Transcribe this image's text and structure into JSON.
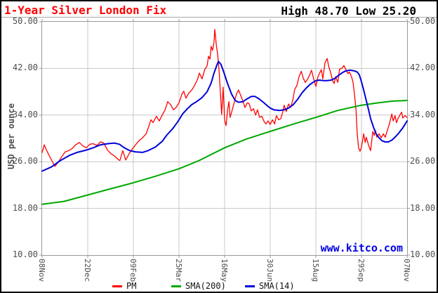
{
  "header": {
    "title": "1-Year Silver London Fix",
    "high_low": "High 48.70 Low 25.20"
  },
  "watermark": "www.kitco.com",
  "legend": {
    "items": [
      {
        "label": "PM",
        "color": "#ff0000"
      },
      {
        "label": "SMA(200)",
        "color": "#00a800"
      },
      {
        "label": "SMA(14)",
        "color": "#0000dd"
      }
    ]
  },
  "chart_data": {
    "type": "line",
    "title": "1-Year Silver London Fix",
    "xlabel": "",
    "ylabel": "USD per ounce",
    "ylim": [
      10,
      50
    ],
    "y_ticks": [
      10,
      18,
      26,
      34,
      42,
      50
    ],
    "y_tick_format_decimals": 2,
    "x_tick_labels": [
      "08Nov",
      "22Dec",
      "09Feb",
      "25Mar",
      "16May",
      "30Jun",
      "15Aug",
      "29Sep",
      "07Nov"
    ],
    "grid": true,
    "legend_position": "bottom",
    "high": 48.7,
    "low": 25.2,
    "colors": {
      "grid": "#c8c8c8",
      "frame": "#999999",
      "tick": "#999999",
      "labels": "#4d4d4d"
    },
    "series": [
      {
        "name": "PM",
        "color": "#ff0000",
        "width": 1.3,
        "points": [
          [
            0,
            27.6
          ],
          [
            0.6,
            28.9
          ],
          [
            1.2,
            28
          ],
          [
            1.9,
            27.1
          ],
          [
            2.9,
            25.9
          ],
          [
            3.5,
            25.2
          ],
          [
            4.4,
            25.9
          ],
          [
            5.4,
            26.9
          ],
          [
            6.3,
            27.7
          ],
          [
            7.3,
            27.9
          ],
          [
            8.3,
            28.3
          ],
          [
            9.2,
            28.9
          ],
          [
            10.2,
            29.3
          ],
          [
            11.2,
            28.7
          ],
          [
            12.1,
            28.4
          ],
          [
            13.1,
            29
          ],
          [
            14,
            29.1
          ],
          [
            15,
            28.8
          ],
          [
            16,
            29.4
          ],
          [
            16.9,
            29.2
          ],
          [
            17.9,
            28
          ],
          [
            18.8,
            27.4
          ],
          [
            19.8,
            27
          ],
          [
            20.8,
            26.4
          ],
          [
            21.3,
            26.2
          ],
          [
            22.1,
            27.9
          ],
          [
            22.9,
            26.3
          ],
          [
            23.7,
            27.2
          ],
          [
            24.6,
            28.1
          ],
          [
            25.6,
            28.9
          ],
          [
            26.5,
            29.6
          ],
          [
            27.5,
            30.1
          ],
          [
            28.5,
            30.8
          ],
          [
            29.2,
            32
          ],
          [
            29.8,
            33.2
          ],
          [
            30.4,
            32.7
          ],
          [
            31.3,
            33.8
          ],
          [
            32.1,
            33
          ],
          [
            32.9,
            34
          ],
          [
            33.7,
            34.9
          ],
          [
            34.4,
            36.3
          ],
          [
            35.2,
            35.8
          ],
          [
            36,
            34.9
          ],
          [
            36.7,
            35.3
          ],
          [
            37.5,
            36.1
          ],
          [
            38.3,
            37.6
          ],
          [
            38.8,
            38.1
          ],
          [
            39.4,
            36.9
          ],
          [
            40.2,
            37.8
          ],
          [
            41,
            38.3
          ],
          [
            41.7,
            39
          ],
          [
            42.5,
            40
          ],
          [
            43.1,
            41.2
          ],
          [
            43.8,
            40.2
          ],
          [
            44.6,
            41.9
          ],
          [
            45.2,
            42.4
          ],
          [
            45.6,
            44.1
          ],
          [
            46,
            43.6
          ],
          [
            46.3,
            45.8
          ],
          [
            46.7,
            45.1
          ],
          [
            47.1,
            46.5
          ],
          [
            47.3,
            48.7
          ],
          [
            47.7,
            46.2
          ],
          [
            48.1,
            44.4
          ],
          [
            48.5,
            41.5
          ],
          [
            48.8,
            38.2
          ],
          [
            49.2,
            34.1
          ],
          [
            49.6,
            38.8
          ],
          [
            50,
            33.1
          ],
          [
            50.4,
            32.2
          ],
          [
            50.8,
            34.9
          ],
          [
            51.2,
            36.3
          ],
          [
            51.5,
            33.6
          ],
          [
            52.1,
            34.9
          ],
          [
            52.7,
            36.3
          ],
          [
            53.3,
            37.7
          ],
          [
            53.8,
            38.3
          ],
          [
            54.4,
            37.4
          ],
          [
            55,
            36.4
          ],
          [
            55.6,
            35.3
          ],
          [
            56.2,
            36.1
          ],
          [
            56.7,
            36
          ],
          [
            57.3,
            34.7
          ],
          [
            57.9,
            35.1
          ],
          [
            58.5,
            34
          ],
          [
            59,
            34.9
          ],
          [
            59.6,
            33.6
          ],
          [
            60.2,
            33.8
          ],
          [
            60.8,
            32.9
          ],
          [
            61.3,
            32.5
          ],
          [
            61.9,
            33
          ],
          [
            62.5,
            32.4
          ],
          [
            63.1,
            33.2
          ],
          [
            63.7,
            32.5
          ],
          [
            64.2,
            33.9
          ],
          [
            64.8,
            33.2
          ],
          [
            65.4,
            33.4
          ],
          [
            66,
            34.7
          ],
          [
            66.3,
            35.7
          ],
          [
            66.9,
            34.6
          ],
          [
            67.5,
            35.9
          ],
          [
            68.1,
            35.3
          ],
          [
            68.7,
            36.6
          ],
          [
            69.2,
            38.4
          ],
          [
            69.8,
            39.1
          ],
          [
            70.4,
            40.6
          ],
          [
            71,
            41.5
          ],
          [
            71.5,
            40.4
          ],
          [
            72.1,
            39.6
          ],
          [
            72.7,
            40.1
          ],
          [
            73.3,
            40.9
          ],
          [
            73.8,
            41.7
          ],
          [
            74.4,
            40.2
          ],
          [
            75,
            38.9
          ],
          [
            75.6,
            40.6
          ],
          [
            76.2,
            41.4
          ],
          [
            76.5,
            41.8
          ],
          [
            76.9,
            40.2
          ],
          [
            77.5,
            43
          ],
          [
            78.1,
            43.7
          ],
          [
            78.5,
            42.4
          ],
          [
            79,
            41.4
          ],
          [
            79.6,
            39.9
          ],
          [
            80,
            39.4
          ],
          [
            80.4,
            40.6
          ],
          [
            81,
            39.6
          ],
          [
            81.5,
            41.9
          ],
          [
            82.1,
            42
          ],
          [
            82.7,
            42.5
          ],
          [
            83.3,
            41.7
          ],
          [
            83.8,
            41.1
          ],
          [
            84.2,
            41.4
          ],
          [
            84.8,
            40.5
          ],
          [
            85.2,
            39.6
          ],
          [
            85.6,
            37.4
          ],
          [
            86,
            34.9
          ],
          [
            86.3,
            31
          ],
          [
            86.7,
            28.4
          ],
          [
            87.1,
            27.8
          ],
          [
            87.5,
            28.5
          ],
          [
            88.1,
            30.8
          ],
          [
            88.5,
            29.3
          ],
          [
            88.8,
            30.2
          ],
          [
            89.4,
            28.9
          ],
          [
            90,
            27.9
          ],
          [
            90.6,
            31.2
          ],
          [
            91,
            30.5
          ],
          [
            91.3,
            31.4
          ],
          [
            91.7,
            30.2
          ],
          [
            92.3,
            30.8
          ],
          [
            92.9,
            30.1
          ],
          [
            93.5,
            30.8
          ],
          [
            94,
            30.2
          ],
          [
            94.6,
            31.4
          ],
          [
            95.2,
            32.6
          ],
          [
            95.8,
            34.2
          ],
          [
            96.2,
            33
          ],
          [
            96.7,
            33.9
          ],
          [
            97.1,
            32.7
          ],
          [
            97.5,
            33.4
          ],
          [
            98.1,
            34.1
          ],
          [
            98.5,
            34.5
          ],
          [
            98.8,
            33.5
          ],
          [
            99.4,
            33.9
          ],
          [
            100,
            33.6
          ]
        ]
      },
      {
        "name": "SMA(200)",
        "color": "#00a800",
        "width": 2,
        "points": [
          [
            0,
            18.7
          ],
          [
            6,
            19.2
          ],
          [
            12.5,
            20.3
          ],
          [
            19,
            21.4
          ],
          [
            25,
            22.4
          ],
          [
            31,
            23.5
          ],
          [
            37.5,
            24.8
          ],
          [
            43,
            26.2
          ],
          [
            50,
            28.4
          ],
          [
            56,
            29.9
          ],
          [
            62.5,
            31.2
          ],
          [
            69,
            32.5
          ],
          [
            75,
            33.6
          ],
          [
            81,
            34.8
          ],
          [
            87.5,
            35.7
          ],
          [
            92,
            36.1
          ],
          [
            96,
            36.4
          ],
          [
            100,
            36.5
          ]
        ]
      },
      {
        "name": "SMA(14)",
        "color": "#0000dd",
        "width": 2,
        "points": [
          [
            0,
            24.4
          ],
          [
            2.5,
            25.1
          ],
          [
            5,
            26.2
          ],
          [
            7.5,
            27.1
          ],
          [
            9.6,
            27.6
          ],
          [
            12.1,
            28
          ],
          [
            14,
            28.4
          ],
          [
            16,
            28.9
          ],
          [
            18,
            29.1
          ],
          [
            19.8,
            29.2
          ],
          [
            21.2,
            29
          ],
          [
            22.5,
            28.4
          ],
          [
            24,
            27.9
          ],
          [
            25.6,
            27.7
          ],
          [
            27.5,
            27.6
          ],
          [
            29,
            27.9
          ],
          [
            31,
            28.5
          ],
          [
            32.9,
            29.5
          ],
          [
            34.2,
            30.6
          ],
          [
            35.8,
            31.7
          ],
          [
            37.1,
            32.8
          ],
          [
            38.5,
            34.2
          ],
          [
            39.8,
            35.1
          ],
          [
            41,
            35.8
          ],
          [
            42.3,
            36.3
          ],
          [
            43.8,
            37
          ],
          [
            45.2,
            38
          ],
          [
            46.3,
            39.5
          ],
          [
            47.1,
            41.2
          ],
          [
            47.9,
            42.6
          ],
          [
            48.3,
            43.2
          ],
          [
            49,
            42.7
          ],
          [
            49.8,
            41.3
          ],
          [
            50.8,
            39.4
          ],
          [
            51.9,
            37.6
          ],
          [
            52.9,
            36.5
          ],
          [
            53.8,
            36.2
          ],
          [
            55,
            36.3
          ],
          [
            56.2,
            36.8
          ],
          [
            57.3,
            37.2
          ],
          [
            58.3,
            37.2
          ],
          [
            59.4,
            36.8
          ],
          [
            60.6,
            36.2
          ],
          [
            61.7,
            35.6
          ],
          [
            62.5,
            35.2
          ],
          [
            63.5,
            34.9
          ],
          [
            65,
            34.8
          ],
          [
            66.3,
            34.9
          ],
          [
            67.5,
            35.2
          ],
          [
            68.8,
            35.8
          ],
          [
            70,
            36.7
          ],
          [
            71.2,
            37.8
          ],
          [
            72.3,
            38.6
          ],
          [
            73.3,
            39.2
          ],
          [
            74.2,
            39.6
          ],
          [
            75,
            39.9
          ],
          [
            76,
            40
          ],
          [
            77.1,
            39.9
          ],
          [
            78.1,
            39.9
          ],
          [
            79.2,
            40
          ],
          [
            80.2,
            40.3
          ],
          [
            81.2,
            40.8
          ],
          [
            82.3,
            41.3
          ],
          [
            83.3,
            41.6
          ],
          [
            84.4,
            41.7
          ],
          [
            85.4,
            41.6
          ],
          [
            86.3,
            41.4
          ],
          [
            86.9,
            40.9
          ],
          [
            87.5,
            39.7
          ],
          [
            88.1,
            38.3
          ],
          [
            88.7,
            36.8
          ],
          [
            89.4,
            35
          ],
          [
            90,
            33.4
          ],
          [
            90.8,
            31.9
          ],
          [
            91.5,
            30.8
          ],
          [
            92.3,
            30.1
          ],
          [
            93.1,
            29.6
          ],
          [
            94,
            29.4
          ],
          [
            94.8,
            29.4
          ],
          [
            95.8,
            29.7
          ],
          [
            96.7,
            30.2
          ],
          [
            97.7,
            30.9
          ],
          [
            98.7,
            31.7
          ],
          [
            99.4,
            32.4
          ],
          [
            100,
            33
          ]
        ]
      }
    ]
  }
}
